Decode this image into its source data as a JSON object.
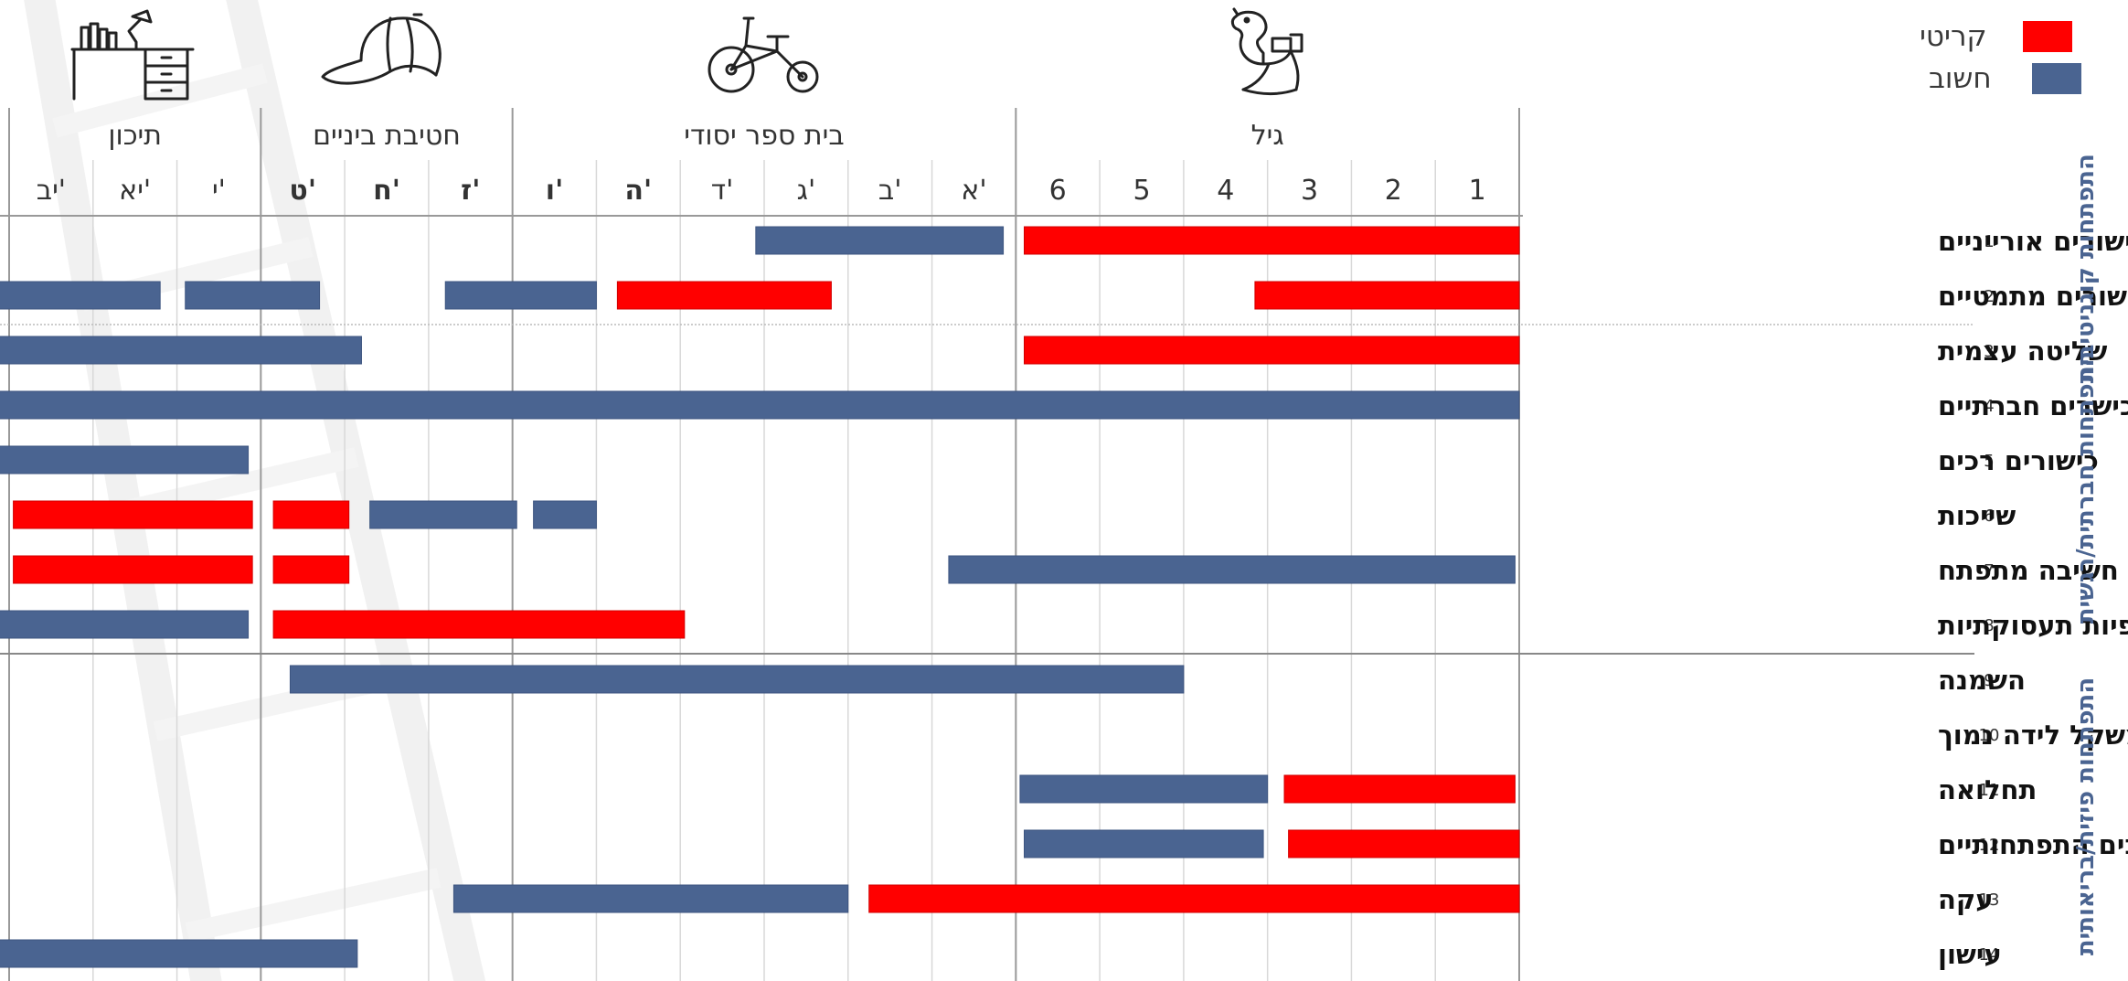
{
  "legend": {
    "critical_label": "קריטי",
    "critical_color": "#ff0000",
    "important_label": "חשוב",
    "important_color": "#4a6491"
  },
  "icons": [
    "rocking-horse-icon",
    "tricycle-icon",
    "cap-icon",
    "desk-icon"
  ],
  "chart_data": {
    "type": "bar",
    "orientation": "horizontal-gantt",
    "direction": "rtl",
    "x_groups": [
      {
        "label": "גיל",
        "span": [
          0,
          5
        ]
      },
      {
        "label": "בית ספר יסודי",
        "span": [
          6,
          11
        ]
      },
      {
        "label": "חטיבת ביניים",
        "span": [
          12,
          14
        ]
      },
      {
        "label": "תיכון",
        "span": [
          15,
          17
        ]
      }
    ],
    "x_ticks": [
      {
        "label": "1",
        "bold": false
      },
      {
        "label": "2",
        "bold": false
      },
      {
        "label": "3",
        "bold": false
      },
      {
        "label": "4",
        "bold": false
      },
      {
        "label": "5",
        "bold": false
      },
      {
        "label": "6",
        "bold": false
      },
      {
        "label": "א'",
        "bold": false
      },
      {
        "label": "ב'",
        "bold": false
      },
      {
        "label": "ג'",
        "bold": false
      },
      {
        "label": "ד'",
        "bold": false
      },
      {
        "label": "ה'",
        "bold": true
      },
      {
        "label": "ו'",
        "bold": true
      },
      {
        "label": "ז'",
        "bold": true
      },
      {
        "label": "ח'",
        "bold": true
      },
      {
        "label": "ט'",
        "bold": true
      },
      {
        "label": "י'",
        "bold": false
      },
      {
        "label": "יא'",
        "bold": false
      },
      {
        "label": "יב'",
        "bold": false
      }
    ],
    "rows": [
      {
        "num": "1",
        "label": "כישורים אורייניים"
      },
      {
        "num": "2",
        "label": "כישורים מתמטיים"
      },
      {
        "num": "3",
        "label": "שליטה עצמית"
      },
      {
        "num": "4",
        "label": "כישרים חברתיים"
      },
      {
        "num": "5",
        "label": "כישורים רכים"
      },
      {
        "num": "6",
        "label": "שייכות"
      },
      {
        "num": "7",
        "label": "דפוס חשיבה מתפתח"
      },
      {
        "num": "8",
        "label": "שאיפות וציפיות תעסוקתיות"
      },
      {
        "num": "9",
        "label": "השמנה"
      },
      {
        "num": "10",
        "label": "משקל לידה נמוך"
      },
      {
        "num": "11",
        "label": "תחלואה"
      },
      {
        "num": "12",
        "label": "עיכובים התפתחותיים"
      },
      {
        "num": "13",
        "label": "עקה"
      },
      {
        "num": "14",
        "label": "עישון"
      }
    ],
    "row_groups": [
      {
        "label": "התפתחות קוגניטיבית",
        "rows": [
          1,
          2
        ]
      },
      {
        "label": "התפתחות חברתית/רגשית",
        "rows": [
          3,
          8
        ]
      },
      {
        "label": "התפתחות פיזית/בריאותית",
        "rows": [
          9,
          14
        ]
      }
    ],
    "series": [
      {
        "name": "קריטי",
        "color": "#ff0000",
        "bars": [
          {
            "row": 1,
            "start": 0,
            "end": 5.9
          },
          {
            "row": 2,
            "start": 0,
            "end": 3.15
          },
          {
            "row": 2,
            "start": 8.2,
            "end": 10.75
          },
          {
            "row": 3,
            "start": 0,
            "end": 5.9
          },
          {
            "row": 6,
            "start": 13.95,
            "end": 14.85
          },
          {
            "row": 6,
            "start": 15.1,
            "end": 17.95
          },
          {
            "row": 7,
            "start": 13.95,
            "end": 14.85
          },
          {
            "row": 7,
            "start": 15.1,
            "end": 17.95
          },
          {
            "row": 8,
            "start": 9.95,
            "end": 14.85
          },
          {
            "row": 11,
            "start": 0.05,
            "end": 2.8
          },
          {
            "row": 12,
            "start": 0,
            "end": 2.75
          },
          {
            "row": 13,
            "start": 0,
            "end": 7.75
          }
        ]
      },
      {
        "name": "חשוב",
        "color": "#4a6491",
        "bars": [
          {
            "row": 1,
            "start": 6.15,
            "end": 9.1
          },
          {
            "row": 2,
            "start": 11.0,
            "end": 12.8
          },
          {
            "row": 2,
            "start": 14.3,
            "end": 15.9
          },
          {
            "row": 2,
            "start": 16.2,
            "end": 18.2
          },
          {
            "row": 3,
            "start": 13.8,
            "end": 18.2
          },
          {
            "row": 4,
            "start": 0,
            "end": 18.2
          },
          {
            "row": 5,
            "start": 15.15,
            "end": 18.3
          },
          {
            "row": 6,
            "start": 11.0,
            "end": 11.75
          },
          {
            "row": 6,
            "start": 11.95,
            "end": 13.7
          },
          {
            "row": 7,
            "start": 0.05,
            "end": 6.8
          },
          {
            "row": 8,
            "start": 15.15,
            "end": 18.3
          },
          {
            "row": 9,
            "start": 4.0,
            "end": 14.65
          },
          {
            "row": 11,
            "start": 3.0,
            "end": 5.95
          },
          {
            "row": 12,
            "start": 3.05,
            "end": 5.9
          },
          {
            "row": 13,
            "start": 8.0,
            "end": 12.7
          },
          {
            "row": 14,
            "start": 13.85,
            "end": 18.3
          }
        ]
      }
    ]
  }
}
